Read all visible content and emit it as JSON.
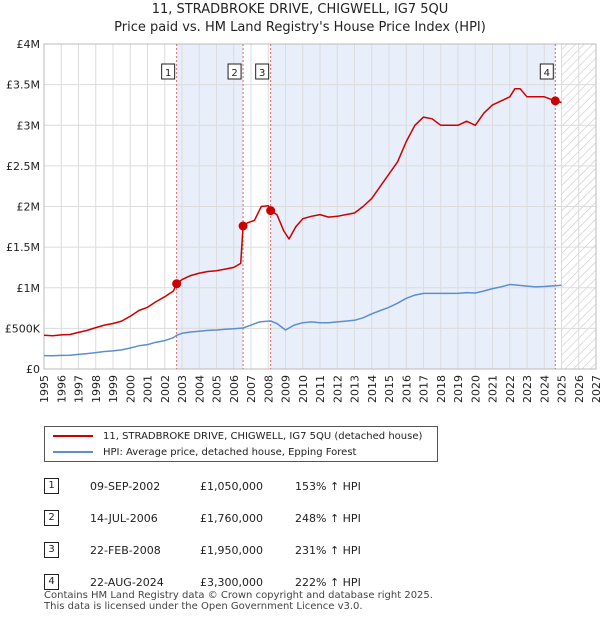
{
  "title_line1": "11, STRADBROKE DRIVE, CHIGWELL, IG7 5QU",
  "title_line2": "Price paid vs. HM Land Registry's House Price Index (HPI)",
  "chart_data": {
    "type": "line",
    "x_range": [
      1995,
      2027
    ],
    "y_range": [
      0,
      4000000
    ],
    "y_ticks": [
      {
        "value": 0,
        "label": "£0"
      },
      {
        "value": 500000,
        "label": "£500K"
      },
      {
        "value": 1000000,
        "label": "£1M"
      },
      {
        "value": 1500000,
        "label": "£1.5M"
      },
      {
        "value": 2000000,
        "label": "£2M"
      },
      {
        "value": 2500000,
        "label": "£2.5M"
      },
      {
        "value": 3000000,
        "label": "£3M"
      },
      {
        "value": 3500000,
        "label": "£3.5M"
      },
      {
        "value": 4000000,
        "label": "£4M"
      }
    ],
    "x_ticks": [
      "1995",
      "1996",
      "1997",
      "1998",
      "1999",
      "2000",
      "2001",
      "2002",
      "2003",
      "2004",
      "2005",
      "2006",
      "2007",
      "2008",
      "2009",
      "2010",
      "2011",
      "2012",
      "2013",
      "2014",
      "2015",
      "2016",
      "2017",
      "2018",
      "2019",
      "2020",
      "2021",
      "2022",
      "2023",
      "2024",
      "2025",
      "2026",
      "2027"
    ],
    "forecast_start": 2025.0,
    "shaded_ranges": [
      [
        2002.69,
        2006.54
      ],
      [
        2008.14,
        2024.64
      ]
    ],
    "series": [
      {
        "name": "11, STRADBROKE DRIVE, CHIGWELL, IG7 5QU (detached house)",
        "color": "#cc0000",
        "points": [
          [
            1995.0,
            415000
          ],
          [
            1995.5,
            410000
          ],
          [
            1996.0,
            420000
          ],
          [
            1996.5,
            425000
          ],
          [
            1997.0,
            450000
          ],
          [
            1997.5,
            475000
          ],
          [
            1998.0,
            510000
          ],
          [
            1998.5,
            540000
          ],
          [
            1999.0,
            560000
          ],
          [
            1999.5,
            590000
          ],
          [
            2000.0,
            650000
          ],
          [
            2000.5,
            720000
          ],
          [
            2001.0,
            760000
          ],
          [
            2001.5,
            830000
          ],
          [
            2002.0,
            890000
          ],
          [
            2002.5,
            960000
          ],
          [
            2002.69,
            1050000
          ],
          [
            2003.0,
            1100000
          ],
          [
            2003.5,
            1150000
          ],
          [
            2004.0,
            1180000
          ],
          [
            2004.5,
            1200000
          ],
          [
            2005.0,
            1210000
          ],
          [
            2005.5,
            1230000
          ],
          [
            2006.0,
            1250000
          ],
          [
            2006.4,
            1300000
          ],
          [
            2006.54,
            1760000
          ],
          [
            2006.8,
            1800000
          ],
          [
            2007.2,
            1830000
          ],
          [
            2007.6,
            2000000
          ],
          [
            2008.0,
            2010000
          ],
          [
            2008.14,
            1950000
          ],
          [
            2008.5,
            1900000
          ],
          [
            2008.9,
            1700000
          ],
          [
            2009.2,
            1600000
          ],
          [
            2009.6,
            1750000
          ],
          [
            2010.0,
            1850000
          ],
          [
            2010.5,
            1880000
          ],
          [
            2011.0,
            1900000
          ],
          [
            2011.5,
            1870000
          ],
          [
            2012.0,
            1880000
          ],
          [
            2012.5,
            1900000
          ],
          [
            2013.0,
            1920000
          ],
          [
            2013.5,
            2000000
          ],
          [
            2014.0,
            2100000
          ],
          [
            2014.5,
            2250000
          ],
          [
            2015.0,
            2400000
          ],
          [
            2015.5,
            2550000
          ],
          [
            2016.0,
            2800000
          ],
          [
            2016.5,
            3000000
          ],
          [
            2017.0,
            3100000
          ],
          [
            2017.5,
            3080000
          ],
          [
            2018.0,
            3000000
          ],
          [
            2018.5,
            3000000
          ],
          [
            2019.0,
            3000000
          ],
          [
            2019.5,
            3050000
          ],
          [
            2020.0,
            3000000
          ],
          [
            2020.5,
            3150000
          ],
          [
            2021.0,
            3250000
          ],
          [
            2021.5,
            3300000
          ],
          [
            2022.0,
            3350000
          ],
          [
            2022.3,
            3450000
          ],
          [
            2022.6,
            3450000
          ],
          [
            2023.0,
            3350000
          ],
          [
            2023.5,
            3350000
          ],
          [
            2024.0,
            3350000
          ],
          [
            2024.64,
            3300000
          ],
          [
            2025.0,
            3280000
          ]
        ]
      },
      {
        "name": "HPI: Average price, detached house, Epping Forest",
        "color": "#5b8fcf",
        "points": [
          [
            1995.0,
            165000
          ],
          [
            1995.5,
            163000
          ],
          [
            1996.0,
            168000
          ],
          [
            1996.5,
            170000
          ],
          [
            1997.0,
            180000
          ],
          [
            1997.5,
            190000
          ],
          [
            1998.0,
            202000
          ],
          [
            1998.5,
            215000
          ],
          [
            1999.0,
            223000
          ],
          [
            1999.5,
            235000
          ],
          [
            2000.0,
            258000
          ],
          [
            2000.5,
            285000
          ],
          [
            2001.0,
            300000
          ],
          [
            2001.5,
            330000
          ],
          [
            2002.0,
            350000
          ],
          [
            2002.5,
            385000
          ],
          [
            2002.69,
            415000
          ],
          [
            2003.0,
            440000
          ],
          [
            2003.5,
            455000
          ],
          [
            2004.0,
            465000
          ],
          [
            2004.5,
            475000
          ],
          [
            2005.0,
            480000
          ],
          [
            2005.5,
            490000
          ],
          [
            2006.0,
            495000
          ],
          [
            2006.54,
            505000
          ],
          [
            2007.0,
            540000
          ],
          [
            2007.5,
            580000
          ],
          [
            2008.0,
            590000
          ],
          [
            2008.14,
            589000
          ],
          [
            2008.5,
            560000
          ],
          [
            2009.0,
            480000
          ],
          [
            2009.5,
            540000
          ],
          [
            2010.0,
            570000
          ],
          [
            2010.5,
            580000
          ],
          [
            2011.0,
            570000
          ],
          [
            2011.5,
            570000
          ],
          [
            2012.0,
            580000
          ],
          [
            2012.5,
            590000
          ],
          [
            2013.0,
            600000
          ],
          [
            2013.5,
            630000
          ],
          [
            2014.0,
            680000
          ],
          [
            2014.5,
            720000
          ],
          [
            2015.0,
            760000
          ],
          [
            2015.5,
            810000
          ],
          [
            2016.0,
            870000
          ],
          [
            2016.5,
            910000
          ],
          [
            2017.0,
            930000
          ],
          [
            2017.5,
            930000
          ],
          [
            2018.0,
            930000
          ],
          [
            2018.5,
            930000
          ],
          [
            2019.0,
            930000
          ],
          [
            2019.5,
            940000
          ],
          [
            2020.0,
            935000
          ],
          [
            2020.5,
            960000
          ],
          [
            2021.0,
            990000
          ],
          [
            2021.5,
            1010000
          ],
          [
            2022.0,
            1040000
          ],
          [
            2022.5,
            1030000
          ],
          [
            2023.0,
            1020000
          ],
          [
            2023.5,
            1010000
          ],
          [
            2024.0,
            1015000
          ],
          [
            2024.64,
            1025000
          ],
          [
            2025.0,
            1030000
          ]
        ]
      }
    ],
    "markers": [
      {
        "label": "1",
        "x": 2002.69,
        "y": 1050000
      },
      {
        "label": "2",
        "x": 2006.54,
        "y": 1760000
      },
      {
        "label": "3",
        "x": 2008.14,
        "y": 1950000
      },
      {
        "label": "4",
        "x": 2024.64,
        "y": 3300000
      }
    ]
  },
  "legend": [
    {
      "label": "11, STRADBROKE DRIVE, CHIGWELL, IG7 5QU (detached house)",
      "color": "#cc0000"
    },
    {
      "label": "HPI: Average price, detached house, Epping Forest",
      "color": "#5b8fcf"
    }
  ],
  "transactions": [
    {
      "num": "1",
      "date": "09-SEP-2002",
      "price": "£1,050,000",
      "hpi": "153% ↑ HPI"
    },
    {
      "num": "2",
      "date": "14-JUL-2006",
      "price": "£1,760,000",
      "hpi": "248% ↑ HPI"
    },
    {
      "num": "3",
      "date": "22-FEB-2008",
      "price": "£1,950,000",
      "hpi": "231% ↑ HPI"
    },
    {
      "num": "4",
      "date": "22-AUG-2024",
      "price": "£3,300,000",
      "hpi": "222% ↑ HPI"
    }
  ],
  "footer_line1": "Contains HM Land Registry data © Crown copyright and database right 2025.",
  "footer_line2": "This data is licensed under the Open Government Licence v3.0."
}
